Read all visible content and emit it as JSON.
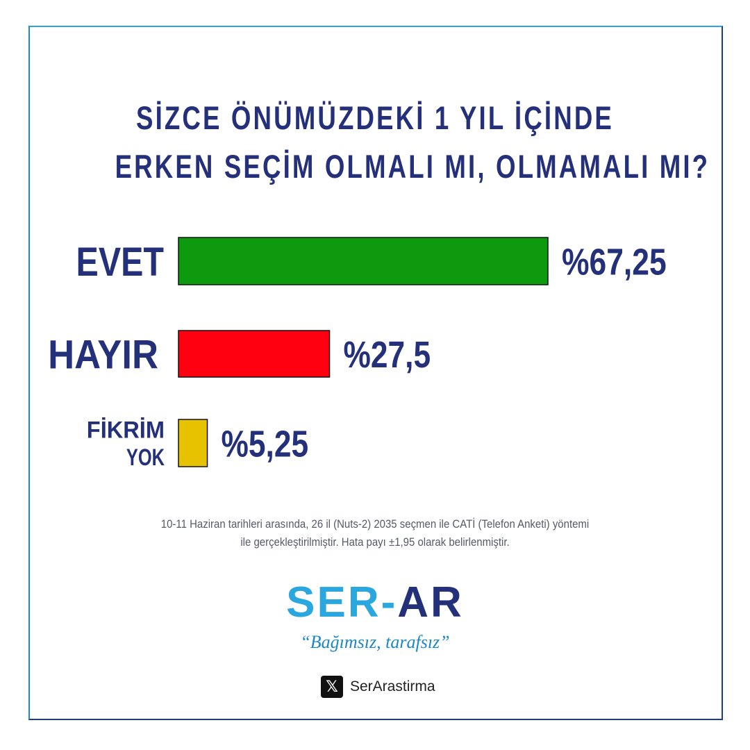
{
  "title_lines": [
    "SİZCE ÖNÜMÜZDEKİ 1 YIL İÇİNDE",
    "ERKEN SEÇİM OLMALI MI, OLMAMALI MI?"
  ],
  "chart_data": {
    "type": "bar",
    "orientation": "horizontal",
    "title": "SİZCE ÖNÜMÜZDEKİ 1 YIL İÇİNDE ERKEN SEÇİM OLMALI MI, OLMAMALI MI?",
    "categories": [
      "EVET",
      "HAYIR",
      "FİKRİM YOK"
    ],
    "category_label_lines": [
      [
        "EVET"
      ],
      [
        "HAYIR"
      ],
      [
        "FİKRİM",
        "YOK"
      ]
    ],
    "values": [
      67.25,
      27.5,
      5.25
    ],
    "value_labels": [
      "%67,25",
      "%27,5",
      "%5,25"
    ],
    "colors": [
      "#0e9a0e",
      "#ff0010",
      "#e6c200"
    ],
    "xlim": [
      0,
      100
    ],
    "grid": false
  },
  "note_lines": [
    "10-11 Haziran tarihleri arasında, 26 il (Nuts-2) 2035 seçmen ile CATİ (Telefon Anketi) yöntemi",
    "ile gerçekleştirilmiştir. Hata payı ±1,95 olarak belirlenmiştir."
  ],
  "logo": {
    "part1": "SER",
    "dash": "-",
    "part2": "AR"
  },
  "slogan": "“Bağımsız, tarafsız”",
  "social": {
    "icon": "x-icon",
    "glyph": "𝕏",
    "handle": "SerArastirma"
  }
}
